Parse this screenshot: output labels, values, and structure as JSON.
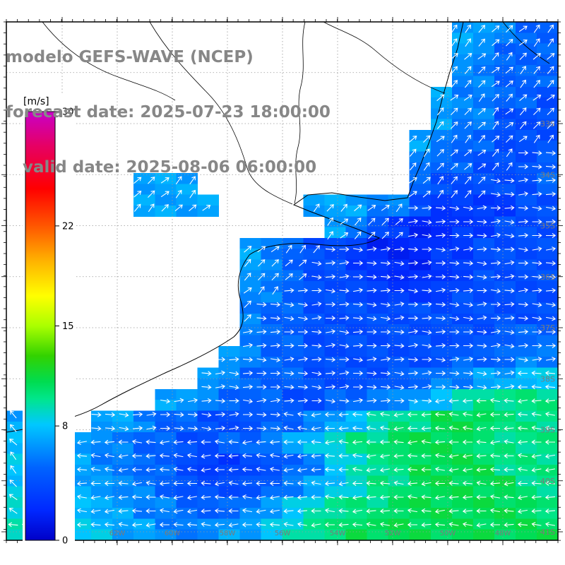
{
  "header": {
    "line1": "modelo GEFS-WAVE (NCEP)",
    "line2": "forecast date: 2025-07-23 18:00:00",
    "line3": "   valid date: 2025-08-06 06:00:00"
  },
  "colorbar": {
    "label": "[m/s]",
    "tick_values": [
      30,
      22,
      15,
      8,
      0
    ],
    "min": 0,
    "max": 30,
    "stops": [
      [
        0.0,
        "#0000c8"
      ],
      [
        0.07,
        "#0028ff"
      ],
      [
        0.17,
        "#0064ff"
      ],
      [
        0.27,
        "#00c8ff"
      ],
      [
        0.33,
        "#00e68c"
      ],
      [
        0.37,
        "#00dc50"
      ],
      [
        0.43,
        "#32d200"
      ],
      [
        0.5,
        "#aaff00"
      ],
      [
        0.57,
        "#ffff00"
      ],
      [
        0.65,
        "#ffb400"
      ],
      [
        0.73,
        "#ff5a00"
      ],
      [
        0.82,
        "#ff0000"
      ],
      [
        0.92,
        "#e60064"
      ],
      [
        1.0,
        "#c800c8"
      ]
    ]
  },
  "map": {
    "lat_labels": [
      "33S",
      "34S",
      "35S",
      "36S",
      "37S",
      "38S",
      "39S",
      "40S",
      "41S"
    ],
    "lon_labels": [
      "64W",
      "62W",
      "60W",
      "58W",
      "56W",
      "54W",
      "52W",
      "50W",
      "48W"
    ],
    "land_color": "#ffffff",
    "coast_color": "#000000",
    "grid_color": "#999999",
    "arrow_color": "#ffffff",
    "label_color": "#7a7a7a"
  },
  "chart_data": {
    "type": "heatmap",
    "title": "modelo GEFS-WAVE (NCEP)",
    "units": "m/s",
    "colorbar_ticks": [
      0,
      8,
      15,
      22,
      30
    ],
    "lat_ticks": [
      "33S",
      "34S",
      "35S",
      "36S",
      "37S",
      "38S",
      "39S",
      "40S",
      "41S"
    ],
    "lon_ticks": [
      "64W",
      "62W",
      "60W",
      "58W",
      "56W",
      "54W",
      "52W",
      "50W",
      "48W"
    ],
    "grid": {
      "cols": 26,
      "rows": 24,
      "encoding": {
        "land": ".",
        "speed": "hex digit = wind speed in m/s (a=10, b=11)",
        "direction": "0=E 1=NE 2=N 3=NW 4=W 5=SW 6=S 7=SE"
      },
      "speeds": [
        ".....................77655",
        ".....................76555",
        ".....................66555",
        "....................766554",
        "....................766444",
        "...................7655444",
        "...................6554445",
        "......777..........5444445",
        "......7777....777664333344",
        "...............76432233444",
        "...........765443222334444",
        "...........765443322334444",
        "...........665444333344444",
        "...........655444444444444",
        "...........655444444444555",
        "..........7655444444455566",
        ".........76555444455667788",
        ".......776555445566789aaaa",
        "77..77655444556789aabbbaaa",
        "8877665544556789aabbbbaaaa",
        "88776655433445689aabbbbaaa",
        "88877665444456789aabbbbbaa",
        "998877665556789aaabbbbbbba",
        "99888776667789aabbbbbbbbbb"
      ],
      "directions": [
        ".....................11111",
        ".....................11111",
        ".....................11111",
        "....................111111",
        "....................111111",
        "...................1111111",
        "...................1111100",
        "......111..........1111000",
        "......1111....111110000000",
        "...............11110000000",
        "...........111100000000000",
        "...........111000000000000",
        "...........110000000000000",
        "...........100000000000000",
        "...........000000000000000",
        "..........0000000000000000",
        ".........00000000000000044",
        ".......0000000000000444444",
        "33..0000000004444444444444",
        "33344444444444444444444444",
        "33344444444444444444444444",
        "33444444444444444444444444",
        "33444444444444444444444444",
        "44444444444444444444444444"
      ]
    }
  }
}
